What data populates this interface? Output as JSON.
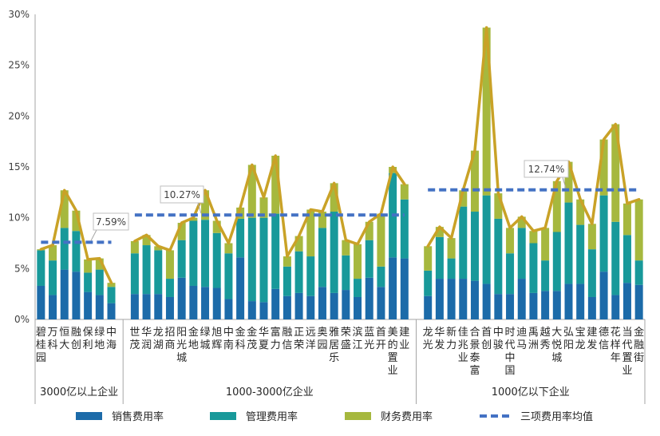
{
  "chart_data": {
    "type": "bar",
    "stacked": true,
    "grid": false,
    "legend_position": "bottom",
    "ylim": [
      0,
      30
    ],
    "yticks": [
      0,
      5,
      10,
      15,
      20,
      25,
      30
    ],
    "yticklabels": [
      "0%",
      "5%",
      "10%",
      "15%",
      "20%",
      "25%",
      "30%"
    ],
    "series": [
      {
        "name": "销售费用率",
        "color": "#1C6BA9"
      },
      {
        "name": "管理费用率",
        "color": "#18999A"
      },
      {
        "name": "财务费用率",
        "color": "#A6B83E"
      }
    ],
    "average_series": {
      "name": "三项费用率均值",
      "color": "#4472C4"
    },
    "total_line_color": "#C9A227",
    "groups": [
      {
        "label": "3000亿以上企业",
        "average": 7.59,
        "average_label": "7.59%",
        "categories": [
          "碧桂园",
          "万科",
          "恒大",
          "融创",
          "保利",
          "绿地",
          "中海"
        ],
        "stack_values": [
          [
            3.3,
            2.4,
            4.9,
            4.7,
            2.7,
            2.4,
            1.6
          ],
          [
            3.5,
            3.4,
            4.1,
            4.0,
            1.9,
            2.5,
            1.6
          ],
          [
            0.1,
            1.5,
            3.7,
            2.0,
            1.3,
            1.1,
            0.4
          ]
        ]
      },
      {
        "label": "1000-3000亿企业",
        "average": 10.27,
        "average_label": "10.27%",
        "categories": [
          "世茂",
          "华润",
          "龙湖",
          "招商",
          "阳光城",
          "金地",
          "绿城",
          "旭辉",
          "中南",
          "金科",
          "金茂",
          "华夏",
          "富力",
          "融信",
          "正荣",
          "远洋",
          "奥园",
          "雅居乐",
          "荣盛",
          "滨江",
          "蓝光",
          "首开",
          "美的置业",
          "建业"
        ],
        "stack_values": [
          [
            2.5,
            2.5,
            2.5,
            2.2,
            4.1,
            3.3,
            3.2,
            3.1,
            2.0,
            6.1,
            1.8,
            1.7,
            3.0,
            2.3,
            2.6,
            2.3,
            3.2,
            2.6,
            2.9,
            2.2,
            4.1,
            3.2,
            6.1,
            6.0
          ],
          [
            4.0,
            4.8,
            4.3,
            1.8,
            3.7,
            6.4,
            6.6,
            5.4,
            4.5,
            3.8,
            8.2,
            8.3,
            7.4,
            2.9,
            4.1,
            3.9,
            5.8,
            8.0,
            3.4,
            1.8,
            3.7,
            2.0,
            8.3,
            5.8
          ],
          [
            1.2,
            1.0,
            0.4,
            2.8,
            1.7,
            0.3,
            2.9,
            1.2,
            1.0,
            1.1,
            5.2,
            2.0,
            5.7,
            1.0,
            1.5,
            4.6,
            1.6,
            2.8,
            1.5,
            3.4,
            1.8,
            5.2,
            0.6,
            1.5
          ]
        ]
      },
      {
        "label": "1000亿以下企业",
        "average": 12.74,
        "average_label": "12.74%",
        "categories": [
          "龙光",
          "华发",
          "新力",
          "佳兆业",
          "合景泰富",
          "首创",
          "中骏",
          "时代中国",
          "迪马",
          "禹洲",
          "越秀",
          "大悦城",
          "弘阳",
          "宝龙",
          "建发",
          "德信",
          "花样年",
          "当代置业",
          "金融街"
        ],
        "stack_values": [
          [
            2.3,
            4.0,
            4.0,
            4.0,
            3.8,
            3.5,
            2.5,
            2.5,
            4.0,
            2.6,
            2.8,
            2.8,
            3.5,
            3.5,
            2.2,
            4.7,
            2.4,
            3.6,
            3.4
          ],
          [
            2.5,
            4.1,
            2.0,
            7.1,
            6.8,
            8.7,
            7.4,
            4.0,
            5.0,
            4.9,
            3.0,
            5.8,
            8.0,
            5.8,
            4.7,
            7.5,
            7.2,
            4.7,
            2.4
          ],
          [
            2.4,
            1.0,
            2.0,
            1.6,
            6.0,
            16.5,
            2.5,
            2.5,
            1.1,
            1.2,
            3.2,
            5.0,
            4.0,
            2.5,
            2.5,
            5.5,
            9.6,
            3.1,
            6.0
          ]
        ]
      }
    ]
  }
}
